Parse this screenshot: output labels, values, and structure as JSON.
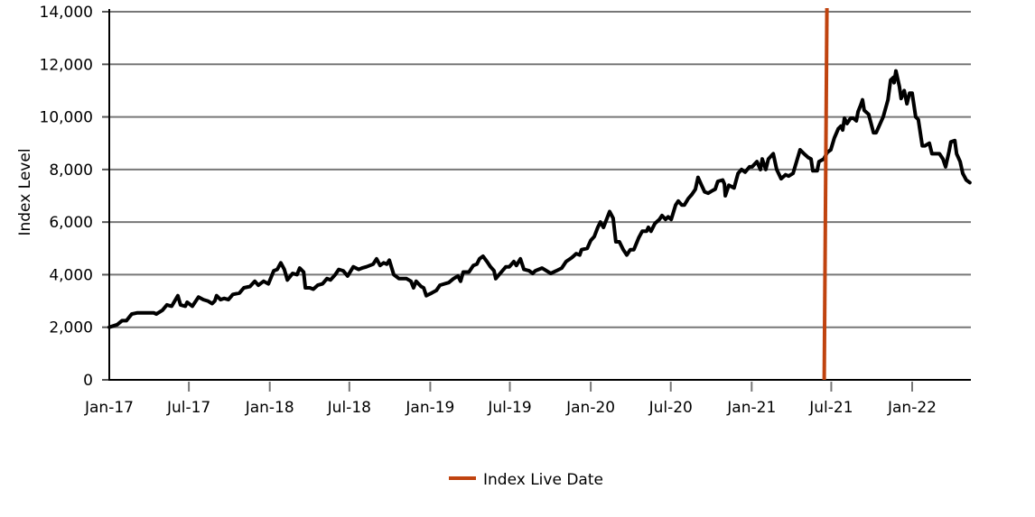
{
  "chart_data": {
    "type": "line",
    "title": "",
    "xlabel": "",
    "ylabel": "Index Level",
    "ylim": [
      0,
      14000
    ],
    "yticks": [
      0,
      2000,
      4000,
      6000,
      8000,
      10000,
      12000,
      14000
    ],
    "ytick_labels": [
      "0",
      "2,000",
      "4,000",
      "6,000",
      "8,000",
      "10,000",
      "12,000",
      "14,000"
    ],
    "xlim": [
      "2017-01-01",
      "2022-05-12"
    ],
    "xticks": [
      "2017-01-01",
      "2017-07-01",
      "2018-01-01",
      "2018-07-01",
      "2019-01-01",
      "2019-07-01",
      "2020-01-01",
      "2020-07-01",
      "2021-01-01",
      "2021-07-01",
      "2022-01-01"
    ],
    "xtick_labels": [
      "Jan-17",
      "Jul-17",
      "Jan-18",
      "Jul-18",
      "Jan-19",
      "Jul-19",
      "Jan-20",
      "Jul-20",
      "Jan-21",
      "Jul-21",
      "Jan-22"
    ],
    "grid": "horizontal",
    "legend_position": "bottom-center",
    "series": [
      {
        "color": "#000000",
        "points": [
          [
            "2017-01-01",
            2000
          ],
          [
            "2017-01-19",
            2100
          ],
          [
            "2017-01-30",
            2250
          ],
          [
            "2017-02-09",
            2250
          ],
          [
            "2017-02-21",
            2500
          ],
          [
            "2017-03-06",
            2550
          ],
          [
            "2017-04-12",
            2550
          ],
          [
            "2017-04-18",
            2500
          ],
          [
            "2017-05-02",
            2650
          ],
          [
            "2017-05-12",
            2850
          ],
          [
            "2017-05-23",
            2800
          ],
          [
            "2017-06-06",
            3200
          ],
          [
            "2017-06-12",
            2850
          ],
          [
            "2017-06-23",
            2800
          ],
          [
            "2017-06-27",
            2950
          ],
          [
            "2017-07-09",
            2800
          ],
          [
            "2017-07-23",
            3150
          ],
          [
            "2017-08-03",
            3050
          ],
          [
            "2017-08-13",
            3000
          ],
          [
            "2017-08-23",
            2900
          ],
          [
            "2017-08-29",
            3000
          ],
          [
            "2017-09-02",
            3200
          ],
          [
            "2017-09-11",
            3050
          ],
          [
            "2017-09-19",
            3100
          ],
          [
            "2017-09-29",
            3050
          ],
          [
            "2017-10-09",
            3250
          ],
          [
            "2017-10-24",
            3300
          ],
          [
            "2017-11-03",
            3500
          ],
          [
            "2017-11-17",
            3550
          ],
          [
            "2017-11-28",
            3750
          ],
          [
            "2017-12-06",
            3600
          ],
          [
            "2017-12-18",
            3750
          ],
          [
            "2017-12-29",
            3650
          ],
          [
            "2018-01-10",
            4150
          ],
          [
            "2018-01-18",
            4200
          ],
          [
            "2018-01-26",
            4450
          ],
          [
            "2018-02-03",
            4200
          ],
          [
            "2018-02-10",
            3800
          ],
          [
            "2018-02-22",
            4050
          ],
          [
            "2018-03-04",
            4000
          ],
          [
            "2018-03-10",
            4250
          ],
          [
            "2018-03-19",
            4100
          ],
          [
            "2018-03-23",
            3500
          ],
          [
            "2018-04-02",
            3500
          ],
          [
            "2018-04-10",
            3450
          ],
          [
            "2018-04-20",
            3600
          ],
          [
            "2018-05-01",
            3650
          ],
          [
            "2018-05-11",
            3850
          ],
          [
            "2018-05-19",
            3800
          ],
          [
            "2018-05-30",
            4000
          ],
          [
            "2018-06-07",
            4200
          ],
          [
            "2018-06-17",
            4150
          ],
          [
            "2018-06-27",
            3950
          ],
          [
            "2018-07-10",
            4300
          ],
          [
            "2018-07-22",
            4200
          ],
          [
            "2018-07-30",
            4250
          ],
          [
            "2018-08-09",
            4300
          ],
          [
            "2018-08-24",
            4400
          ],
          [
            "2018-09-01",
            4600
          ],
          [
            "2018-09-09",
            4350
          ],
          [
            "2018-09-17",
            4450
          ],
          [
            "2018-09-24",
            4400
          ],
          [
            "2018-09-30",
            4550
          ],
          [
            "2018-10-10",
            4000
          ],
          [
            "2018-10-22",
            3850
          ],
          [
            "2018-11-08",
            3850
          ],
          [
            "2018-11-18",
            3750
          ],
          [
            "2018-11-24",
            3500
          ],
          [
            "2018-11-30",
            3750
          ],
          [
            "2018-12-11",
            3550
          ],
          [
            "2018-12-17",
            3500
          ],
          [
            "2018-12-23",
            3200
          ],
          [
            "2019-01-04",
            3300
          ],
          [
            "2019-01-15",
            3400
          ],
          [
            "2019-01-23",
            3600
          ],
          [
            "2019-02-02",
            3650
          ],
          [
            "2019-02-12",
            3700
          ],
          [
            "2019-02-23",
            3850
          ],
          [
            "2019-03-05",
            3950
          ],
          [
            "2019-03-11",
            3750
          ],
          [
            "2019-03-17",
            4100
          ],
          [
            "2019-03-30",
            4100
          ],
          [
            "2019-04-09",
            4350
          ],
          [
            "2019-04-17",
            4400
          ],
          [
            "2019-04-23",
            4600
          ],
          [
            "2019-05-01",
            4700
          ],
          [
            "2019-05-10",
            4500
          ],
          [
            "2019-05-18",
            4300
          ],
          [
            "2019-05-26",
            4150
          ],
          [
            "2019-05-30",
            3850
          ],
          [
            "2019-06-09",
            4050
          ],
          [
            "2019-06-22",
            4300
          ],
          [
            "2019-06-30",
            4300
          ],
          [
            "2019-07-10",
            4500
          ],
          [
            "2019-07-16",
            4350
          ],
          [
            "2019-07-25",
            4600
          ],
          [
            "2019-08-02",
            4200
          ],
          [
            "2019-08-14",
            4150
          ],
          [
            "2019-08-22",
            4050
          ],
          [
            "2019-08-28",
            4150
          ],
          [
            "2019-09-12",
            4250
          ],
          [
            "2019-10-02",
            4050
          ],
          [
            "2019-10-15",
            4150
          ],
          [
            "2019-10-27",
            4250
          ],
          [
            "2019-11-06",
            4500
          ],
          [
            "2019-11-19",
            4650
          ],
          [
            "2019-11-29",
            4800
          ],
          [
            "2019-12-07",
            4750
          ],
          [
            "2019-12-11",
            4950
          ],
          [
            "2019-12-24",
            5000
          ],
          [
            "2020-01-01",
            5300
          ],
          [
            "2020-01-09",
            5450
          ],
          [
            "2020-01-17",
            5800
          ],
          [
            "2020-01-23",
            6000
          ],
          [
            "2020-01-30",
            5800
          ],
          [
            "2020-02-13",
            6400
          ],
          [
            "2020-02-21",
            6150
          ],
          [
            "2020-02-27",
            5250
          ],
          [
            "2020-03-06",
            5250
          ],
          [
            "2020-03-15",
            4950
          ],
          [
            "2020-03-23",
            4750
          ],
          [
            "2020-03-31",
            4950
          ],
          [
            "2020-04-08",
            4950
          ],
          [
            "2020-04-19",
            5400
          ],
          [
            "2020-04-27",
            5650
          ],
          [
            "2020-05-07",
            5650
          ],
          [
            "2020-05-11",
            5800
          ],
          [
            "2020-05-17",
            5650
          ],
          [
            "2020-05-26",
            5950
          ],
          [
            "2020-06-05",
            6100
          ],
          [
            "2020-06-11",
            6250
          ],
          [
            "2020-06-19",
            6100
          ],
          [
            "2020-06-25",
            6200
          ],
          [
            "2020-07-02",
            6100
          ],
          [
            "2020-07-12",
            6650
          ],
          [
            "2020-07-18",
            6800
          ],
          [
            "2020-07-26",
            6650
          ],
          [
            "2020-08-01",
            6650
          ],
          [
            "2020-08-10",
            6900
          ],
          [
            "2020-08-18",
            7050
          ],
          [
            "2020-08-26",
            7250
          ],
          [
            "2020-09-01",
            7700
          ],
          [
            "2020-09-09",
            7400
          ],
          [
            "2020-09-16",
            7150
          ],
          [
            "2020-09-24",
            7100
          ],
          [
            "2020-10-04",
            7200
          ],
          [
            "2020-10-10",
            7250
          ],
          [
            "2020-10-16",
            7550
          ],
          [
            "2020-10-27",
            7600
          ],
          [
            "2020-10-31",
            7450
          ],
          [
            "2020-11-02",
            7000
          ],
          [
            "2020-11-10",
            7400
          ],
          [
            "2020-11-22",
            7300
          ],
          [
            "2020-12-01",
            7850
          ],
          [
            "2020-12-09",
            8000
          ],
          [
            "2020-12-17",
            7900
          ],
          [
            "2020-12-27",
            8100
          ],
          [
            "2021-01-02",
            8100
          ],
          [
            "2021-01-13",
            8300
          ],
          [
            "2021-01-21",
            8000
          ],
          [
            "2021-01-25",
            8400
          ],
          [
            "2021-02-02",
            8000
          ],
          [
            "2021-02-08",
            8400
          ],
          [
            "2021-02-19",
            8600
          ],
          [
            "2021-02-27",
            8000
          ],
          [
            "2021-03-09",
            7650
          ],
          [
            "2021-03-19",
            7800
          ],
          [
            "2021-03-26",
            7750
          ],
          [
            "2021-04-05",
            7850
          ],
          [
            "2021-04-13",
            8300
          ],
          [
            "2021-04-21",
            8750
          ],
          [
            "2021-04-30",
            8600
          ],
          [
            "2021-05-10",
            8450
          ],
          [
            "2021-05-16",
            8400
          ],
          [
            "2021-05-20",
            7950
          ],
          [
            "2021-05-30",
            7950
          ],
          [
            "2021-06-03",
            8300
          ],
          [
            "2021-06-14",
            8400
          ],
          [
            "2021-06-22",
            8650
          ],
          [
            "2021-06-30",
            8750
          ],
          [
            "2021-07-08",
            9200
          ],
          [
            "2021-07-17",
            9550
          ],
          [
            "2021-07-23",
            9650
          ],
          [
            "2021-07-27",
            9500
          ],
          [
            "2021-07-31",
            9950
          ],
          [
            "2021-08-06",
            9750
          ],
          [
            "2021-08-14",
            9950
          ],
          [
            "2021-08-20",
            9950
          ],
          [
            "2021-08-27",
            9850
          ],
          [
            "2021-08-31",
            10200
          ],
          [
            "2021-09-06",
            10450
          ],
          [
            "2021-09-10",
            10650
          ],
          [
            "2021-09-14",
            10250
          ],
          [
            "2021-09-24",
            10100
          ],
          [
            "2021-10-05",
            9400
          ],
          [
            "2021-10-11",
            9400
          ],
          [
            "2021-10-19",
            9700
          ],
          [
            "2021-10-27",
            10000
          ],
          [
            "2021-11-07",
            10650
          ],
          [
            "2021-11-13",
            11400
          ],
          [
            "2021-11-19",
            11500
          ],
          [
            "2021-11-21",
            11300
          ],
          [
            "2021-11-25",
            11750
          ],
          [
            "2021-12-03",
            11150
          ],
          [
            "2021-12-07",
            10700
          ],
          [
            "2021-12-14",
            11000
          ],
          [
            "2021-12-20",
            10500
          ],
          [
            "2021-12-26",
            10900
          ],
          [
            "2022-01-01",
            10900
          ],
          [
            "2022-01-09",
            10000
          ],
          [
            "2022-01-15",
            9900
          ],
          [
            "2022-01-24",
            8900
          ],
          [
            "2022-01-30",
            8900
          ],
          [
            "2022-02-09",
            9000
          ],
          [
            "2022-02-15",
            8600
          ],
          [
            "2022-02-25",
            8600
          ],
          [
            "2022-03-04",
            8600
          ],
          [
            "2022-03-12",
            8400
          ],
          [
            "2022-03-18",
            8100
          ],
          [
            "2022-03-26",
            8700
          ],
          [
            "2022-03-30",
            9050
          ],
          [
            "2022-04-08",
            9100
          ],
          [
            "2022-04-12",
            8600
          ],
          [
            "2022-04-20",
            8300
          ],
          [
            "2022-04-26",
            7850
          ],
          [
            "2022-05-04",
            7600
          ],
          [
            "2022-05-12",
            7500
          ]
        ]
      }
    ],
    "annotations": [
      {
        "type": "vertical-line",
        "date": "2021-06-17",
        "label": "Index Live Date",
        "color": "#c0430f"
      }
    ],
    "legend": [
      {
        "label": "Index Live Date",
        "color": "#c0430f"
      }
    ]
  }
}
